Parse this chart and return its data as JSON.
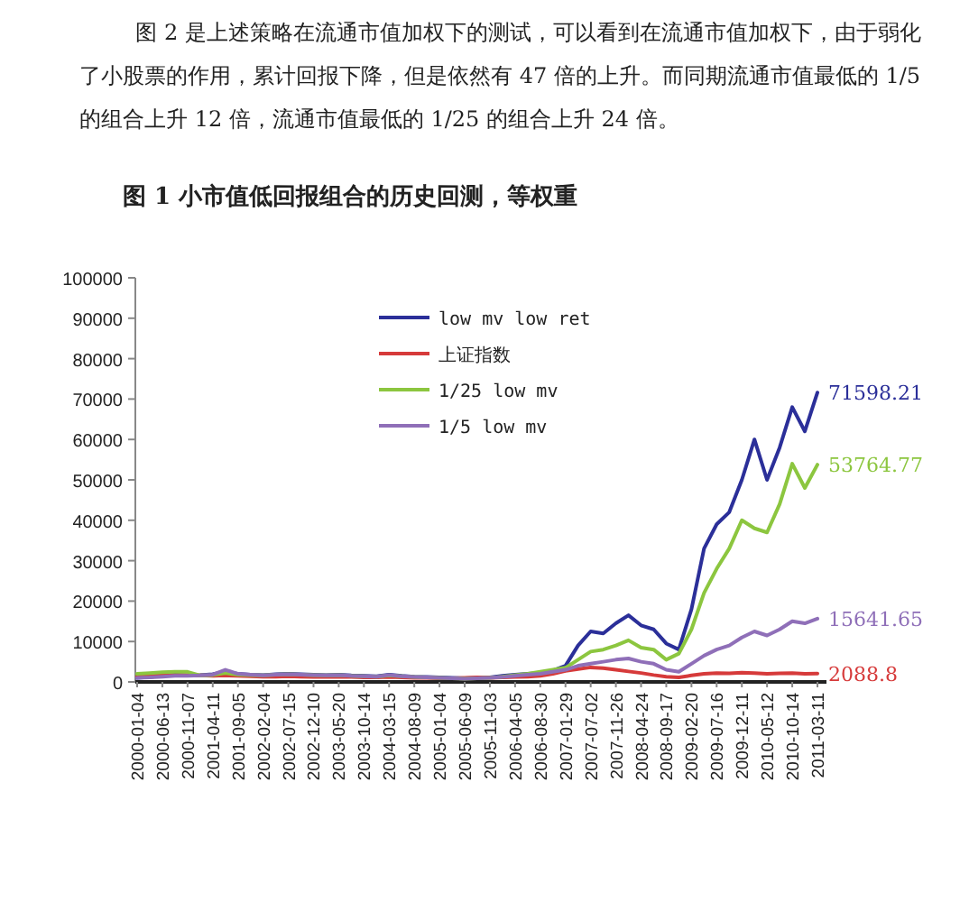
{
  "chart_data": {
    "type": "line",
    "title": "图 1  小市值低回报组合的历史回测，等权重",
    "annotations": [
      "图 2 是上述策略在流通市值加权下的测试，可以看到在流通市值加权下，由于弱化了小股票的作用，累计回报下降，但是依然有 47 倍的上升。而同期流通市值最低的 1/5 的组合上升 12 倍，流通市值最低的 1/25 的组合上升 24 倍。",
      {
        "text": "71598.21",
        "x": "2011-03-11",
        "y": 71598.21
      },
      {
        "text": "53764.77",
        "x": "2011-03-11",
        "y": 53764.77
      },
      {
        "text": "15641.65",
        "x": "2011-03-11",
        "y": 15641.65
      },
      {
        "text": "2088.8",
        "x": "2011-03-11",
        "y": 2088.8
      }
    ],
    "categories": [
      "2000-01-04",
      null,
      "2000-06-13",
      null,
      "2000-11-07",
      null,
      "2001-04-11",
      null,
      "2001-09-05",
      null,
      "2002-02-04",
      null,
      "2002-07-15",
      null,
      "2002-12-10",
      null,
      "2003-05-20",
      null,
      "2003-10-14",
      null,
      "2004-03-15",
      null,
      "2004-08-09",
      null,
      "2005-01-04",
      null,
      "2005-06-09",
      null,
      "2005-11-03",
      null,
      "2006-04-05",
      null,
      "2006-08-30",
      null,
      "2007-01-29",
      null,
      "2007-07-02",
      null,
      "2007-11-26",
      null,
      "2008-04-24",
      null,
      "2008-09-17",
      null,
      "2009-02-20",
      null,
      "2009-07-16",
      null,
      "2009-12-11",
      null,
      "2010-05-12",
      null,
      "2010-10-14",
      null,
      "2011-03-11"
    ],
    "series": [
      {
        "name": "low mv low ret",
        "color": "#2b2f99",
        "values": [
          1000,
          1200,
          1500,
          1800,
          1600,
          1700,
          1900,
          2500,
          2000,
          1800,
          1700,
          1900,
          2000,
          1900,
          1800,
          1700,
          1800,
          1600,
          1500,
          1400,
          1800,
          1500,
          1300,
          1200,
          1100,
          1000,
          900,
          1000,
          1100,
          1500,
          1800,
          2000,
          2200,
          2800,
          4000,
          9000,
          12500,
          12000,
          14500,
          16500,
          14000,
          13000,
          9500,
          8000,
          18000,
          33000,
          39000,
          42000,
          50000,
          60000,
          50000,
          58000,
          68000,
          62000,
          71598.21
        ]
      },
      {
        "name": "上证指数",
        "color": "#d63a3a",
        "values": [
          1400,
          1500,
          1600,
          1700,
          1700,
          1600,
          1500,
          1600,
          1500,
          1400,
          1300,
          1300,
          1400,
          1300,
          1200,
          1200,
          1300,
          1200,
          1100,
          1100,
          1200,
          1100,
          1000,
          1000,
          900,
          900,
          1000,
          1100,
          1000,
          1100,
          1200,
          1300,
          1500,
          2000,
          2700,
          3200,
          3600,
          3400,
          3000,
          2600,
          2200,
          1700,
          1300,
          1100,
          1600,
          2000,
          2200,
          2100,
          2300,
          2200,
          2000,
          2100,
          2200,
          2000,
          2088.8
        ]
      },
      {
        "name": "1/25 low mv",
        "color": "#8cc63f",
        "values": [
          2000,
          2200,
          2400,
          2500,
          2500,
          1600,
          1700,
          2200,
          1800,
          1700,
          1600,
          1800,
          1900,
          1800,
          1700,
          1600,
          1700,
          1500,
          1400,
          1300,
          1600,
          1400,
          1200,
          1100,
          1000,
          900,
          800,
          900,
          1000,
          1300,
          1700,
          2000,
          2500,
          3000,
          3500,
          5500,
          7500,
          8000,
          9000,
          10300,
          8500,
          8000,
          5500,
          7000,
          13000,
          22000,
          28000,
          33000,
          40000,
          38000,
          37000,
          44000,
          54000,
          48000,
          53764.77
        ]
      },
      {
        "name": "1/5 low mv",
        "color": "#8f6fb8",
        "values": [
          1000,
          1100,
          1300,
          1500,
          1500,
          1600,
          1800,
          3000,
          2000,
          1800,
          1600,
          1800,
          1900,
          1800,
          1700,
          1600,
          1700,
          1500,
          1400,
          1300,
          1700,
          1400,
          1200,
          1100,
          1000,
          900,
          800,
          900,
          1000,
          1200,
          1500,
          1800,
          2000,
          2500,
          3000,
          4000,
          4500,
          5000,
          5500,
          5800,
          5000,
          4500,
          3000,
          2500,
          4500,
          6500,
          8000,
          9000,
          11000,
          12500,
          11500,
          13000,
          15000,
          14500,
          15641.65
        ]
      }
    ],
    "ylim": [
      0,
      100000
    ],
    "yticks": [
      0,
      10000,
      20000,
      30000,
      40000,
      50000,
      60000,
      70000,
      80000,
      90000,
      100000
    ],
    "legend": "top left"
  }
}
